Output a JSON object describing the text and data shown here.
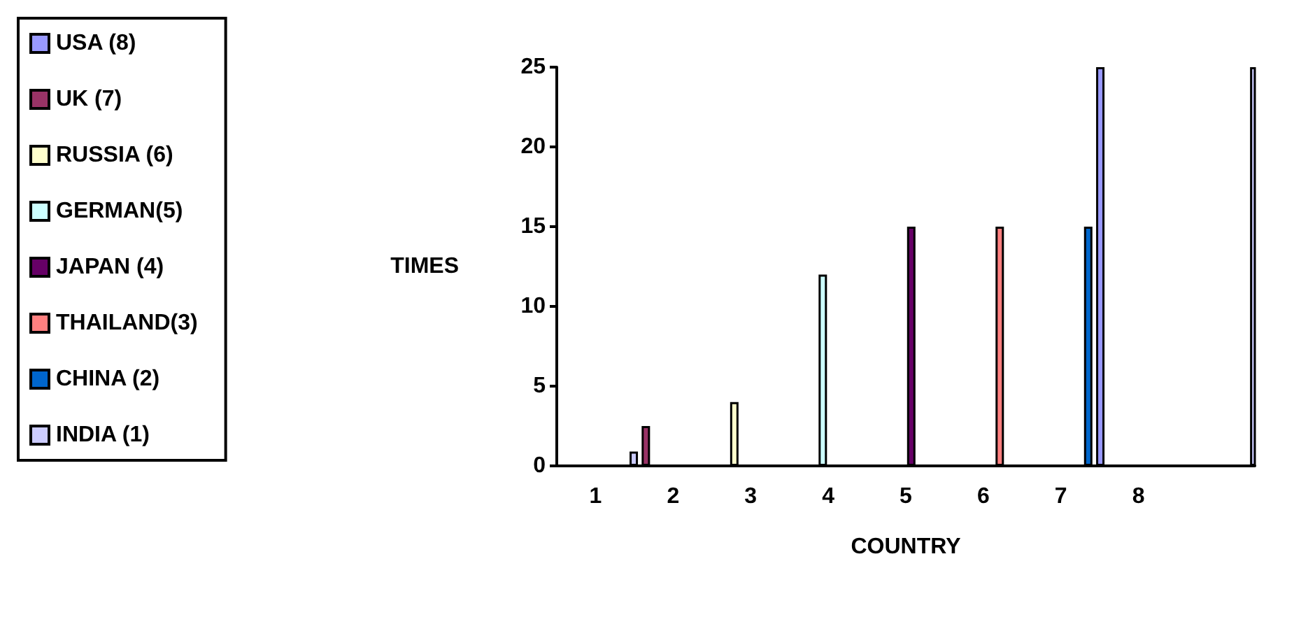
{
  "chart_data": {
    "type": "bar",
    "xlabel": "COUNTRY",
    "ylabel": "TIMES",
    "categories": [
      "1",
      "2",
      "3",
      "4",
      "5",
      "6",
      "7",
      "8",
      null
    ],
    "series": [
      {
        "name": "USA (8)",
        "color": "#9999ff",
        "values": [
          null,
          null,
          null,
          null,
          null,
          null,
          null,
          25,
          null
        ]
      },
      {
        "name": "UK (7)",
        "color": "#993366",
        "values": [
          null,
          2.5,
          null,
          null,
          null,
          null,
          null,
          null,
          null
        ]
      },
      {
        "name": "RUSSIA (6)",
        "color": "#ffffcc",
        "values": [
          null,
          null,
          4,
          null,
          null,
          null,
          null,
          null,
          null
        ]
      },
      {
        "name": "GERMAN(5)",
        "color": "#ccffff",
        "values": [
          null,
          null,
          null,
          12,
          null,
          null,
          null,
          null,
          null
        ]
      },
      {
        "name": "JAPAN (4)",
        "color": "#660066",
        "values": [
          null,
          null,
          null,
          null,
          15,
          null,
          null,
          null,
          null
        ]
      },
      {
        "name": "THAILAND(3)",
        "color": "#ff8080",
        "values": [
          null,
          null,
          null,
          null,
          null,
          15,
          null,
          null,
          null
        ]
      },
      {
        "name": "CHINA (2)",
        "color": "#0066cc",
        "values": [
          null,
          null,
          null,
          null,
          null,
          null,
          15,
          null,
          null
        ]
      },
      {
        "name": "INDIA (1)",
        "color": "#ccccff",
        "values": [
          0.9,
          null,
          null,
          null,
          null,
          null,
          null,
          null,
          25
        ]
      }
    ],
    "ylim": [
      0,
      25
    ],
    "yticks": [
      0,
      5,
      10,
      15,
      20,
      25
    ],
    "grid": false,
    "legend": "left"
  }
}
